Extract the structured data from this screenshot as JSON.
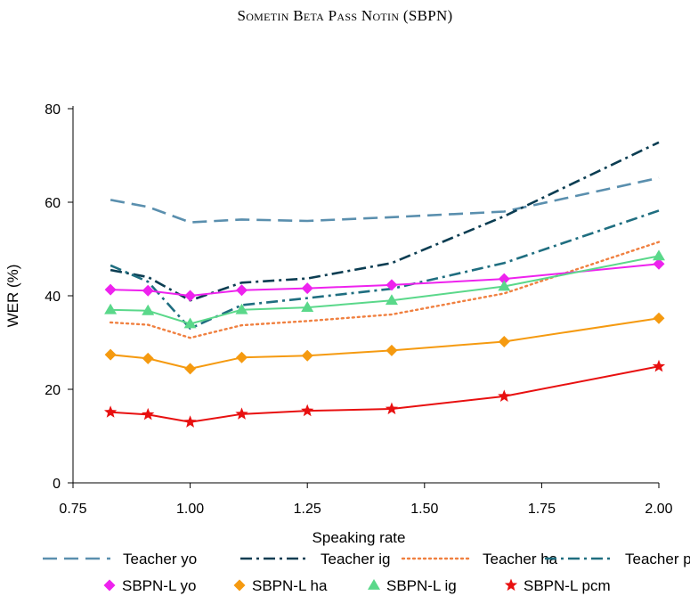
{
  "chart_data": {
    "type": "line",
    "title": "Sometin Beta Pass Notin (SBPN)",
    "xlabel": "Speaking rate",
    "ylabel": "WER (%)",
    "xlim": [
      0.75,
      2.0
    ],
    "ylim": [
      0,
      80
    ],
    "xticks": [
      "0.75",
      "1.00",
      "1.25",
      "1.50",
      "1.75",
      "2.00"
    ],
    "yticks": [
      "0",
      "20",
      "40",
      "60",
      "80"
    ],
    "x": [
      0.83,
      0.91,
      1.0,
      1.11,
      1.25,
      1.43,
      1.67,
      2.0
    ],
    "series": [
      {
        "name": "Teacher yo",
        "color": "#5a8fae",
        "style": "dashed",
        "marker": "none",
        "values": [
          60.5,
          59.0,
          55.7,
          56.3,
          56.0,
          56.8,
          58.0,
          65.2
        ]
      },
      {
        "name": "Teacher ig",
        "color": "#0b3d52",
        "style": "dashdot",
        "marker": "none",
        "values": [
          45.5,
          44.0,
          39.0,
          42.8,
          43.7,
          47.0,
          57.0,
          72.8
        ]
      },
      {
        "name": "Teacher ha",
        "color": "#f08040",
        "style": "dotted",
        "marker": "none",
        "values": [
          34.3,
          33.8,
          31.0,
          33.7,
          34.6,
          36.0,
          40.5,
          51.5
        ]
      },
      {
        "name": "Teacher pcm",
        "color": "#1f6e80",
        "style": "dashdot",
        "marker": "none",
        "values": [
          46.5,
          43.0,
          33.0,
          38.0,
          39.5,
          41.5,
          47.0,
          58.2
        ]
      },
      {
        "name": "SBPN-L yo",
        "color": "#ee22ee",
        "style": "solid",
        "marker": "diamond",
        "values": [
          41.3,
          41.1,
          40.0,
          41.2,
          41.6,
          42.3,
          43.6,
          46.8
        ]
      },
      {
        "name": "SBPN-L ha",
        "color": "#f59a10",
        "style": "solid",
        "marker": "diamond",
        "values": [
          27.4,
          26.6,
          24.4,
          26.8,
          27.2,
          28.3,
          30.2,
          35.2
        ]
      },
      {
        "name": "SBPN-L ig",
        "color": "#5ad88a",
        "style": "solid",
        "marker": "triangle",
        "values": [
          37.0,
          36.8,
          34.0,
          37.0,
          37.5,
          39.0,
          42.0,
          48.5
        ]
      },
      {
        "name": "SBPN-L pcm",
        "color": "#e81010",
        "style": "solid",
        "marker": "star",
        "values": [
          15.1,
          14.6,
          13.0,
          14.7,
          15.4,
          15.8,
          18.5,
          24.9
        ]
      }
    ],
    "legend": "bottom-center",
    "grid": false
  }
}
